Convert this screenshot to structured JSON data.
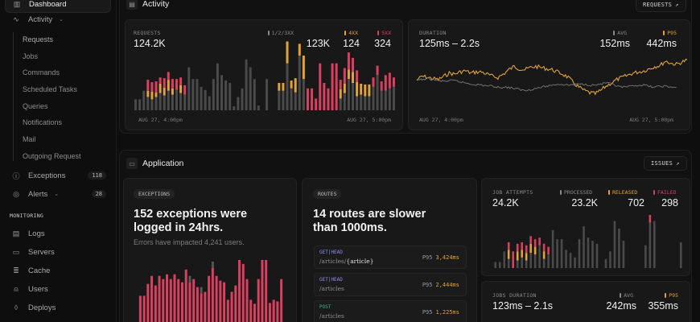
{
  "sidebar": {
    "items": [
      {
        "label": "Dashboard",
        "icon": "dashboard-icon",
        "glyph": "▥"
      },
      {
        "label": "Activity",
        "icon": "activity-icon",
        "glyph": "∿",
        "expandable": true
      }
    ],
    "activity_children": [
      "Requests",
      "Jobs",
      "Commands",
      "Scheduled Tasks",
      "Queries",
      "Notifications",
      "Mail",
      "Outgoing Request"
    ],
    "exceptions": {
      "label": "Exceptions",
      "badge": "118",
      "glyph": "ⓘ"
    },
    "alerts": {
      "label": "Alerts",
      "badge": "28",
      "glyph": "◎"
    },
    "monitoring_label": "MONITORING",
    "monitoring": [
      {
        "label": "Logs",
        "glyph": "▤"
      },
      {
        "label": "Servers",
        "glyph": "▭"
      },
      {
        "label": "Cache",
        "glyph": "≣"
      },
      {
        "label": "Users",
        "glyph": "⍝"
      },
      {
        "label": "Deploys",
        "glyph": "◊"
      }
    ]
  },
  "activity": {
    "title": "Activity",
    "link_label": "REQUESTS",
    "link_arrow": "↗",
    "requests": {
      "label": "REQUESTS",
      "total": "124.2K",
      "legend": [
        {
          "name": "1/2/3XX",
          "value": "123K",
          "color": "#6b6b6b"
        },
        {
          "name": "4XX",
          "value": "124",
          "color": "#e0a33a"
        },
        {
          "name": "5XX",
          "value": "324",
          "color": "#d9405f"
        }
      ],
      "x_start": "AUG 27, 4:00pm",
      "x_end": "AUG 27, 5:00pm"
    },
    "duration": {
      "label": "DURATION",
      "range": "125ms – 2.2s",
      "legend": [
        {
          "name": "AVG",
          "value": "152ms",
          "color": "#8a8a8a"
        },
        {
          "name": "P95",
          "value": "442ms",
          "color": "#e0a33a"
        }
      ],
      "x_start": "AUG 27, 4:00pm",
      "x_end": "AUG 27, 5:00pm"
    }
  },
  "application": {
    "title": "Application",
    "link_label": "ISSUES",
    "link_arrow": "↗",
    "exceptions": {
      "pill": "EXCEPTIONS",
      "headline_1": "152 exceptions were",
      "headline_2": "logged in 24hrs.",
      "subtitle": "Errors have impacted 4,241 users."
    },
    "routes": {
      "pill": "ROUTES",
      "headline_1": "14 routes are slower",
      "headline_2": "than 1000ms.",
      "items": [
        {
          "method": "GET|HEAD",
          "method_color": "#8b8cf0",
          "path_prefix": "/articles/",
          "path_param": "{article}",
          "p95_label": "P95",
          "p95": "3,424ms"
        },
        {
          "method": "GET|HEAD",
          "method_color": "#8b8cf0",
          "path_prefix": "/articles",
          "path_param": "",
          "p95_label": "P95",
          "p95": "2,444ms"
        },
        {
          "method": "POST",
          "method_color": "#3fb47a",
          "path_prefix": "/articles",
          "path_param": "",
          "p95_label": "P95",
          "p95": "1,225ms"
        }
      ]
    },
    "jobs": {
      "label": "JOB ATTEMPTS",
      "total": "24.2K",
      "legend": [
        {
          "name": "PROCESSED",
          "value": "23.2K",
          "color": "#8a8a8a"
        },
        {
          "name": "RELEASED",
          "value": "702",
          "color": "#e0a33a"
        },
        {
          "name": "FAILED",
          "value": "298",
          "color": "#d9405f"
        }
      ]
    },
    "jobs_duration": {
      "label": "JOBS DURATION",
      "range": "123ms – 2.1s",
      "legend": [
        {
          "name": "AVG",
          "value": "242ms",
          "color": "#8a8a8a"
        },
        {
          "name": "P95",
          "value": "355ms",
          "color": "#e0a33a"
        }
      ]
    }
  },
  "chart_data": [
    {
      "type": "bar",
      "title": "Requests",
      "stacked": true,
      "series": [
        {
          "name": "1/2/3XX",
          "values": [
            14,
            14,
            25,
            17,
            14,
            17,
            22,
            19,
            25,
            20,
            26,
            22,
            20,
            55,
            40,
            40,
            30,
            26,
            18,
            40,
            60,
            45,
            38,
            35,
            5,
            17,
            28,
            65,
            55,
            40,
            6,
            0,
            40,
            0,
            0,
            25,
            25,
            60,
            28,
            23,
            70,
            40,
            0,
            0,
            0,
            0,
            0,
            0,
            0,
            0,
            15,
            22,
            40,
            35,
            18,
            20,
            18,
            18,
            30,
            45,
            25,
            25,
            28,
            30
          ]
        },
        {
          "name": "4XX",
          "values": [
            0,
            0,
            0,
            8,
            10,
            6,
            12,
            10,
            14,
            8,
            0,
            10,
            0,
            0,
            0,
            0,
            0,
            0,
            0,
            0,
            0,
            0,
            0,
            0,
            0,
            0,
            0,
            0,
            0,
            0,
            0,
            0,
            0,
            0,
            0,
            10,
            10,
            28,
            10,
            18,
            15,
            30,
            0,
            0,
            0,
            0,
            0,
            0,
            0,
            0,
            12,
            12,
            12,
            14,
            18,
            14,
            15,
            15,
            0,
            0,
            0,
            0,
            0,
            0
          ]
        },
        {
          "name": "5XX",
          "values": [
            0,
            0,
            0,
            14,
            12,
            14,
            8,
            12,
            10,
            12,
            14,
            10,
            12,
            0,
            0,
            0,
            0,
            0,
            0,
            0,
            0,
            0,
            0,
            0,
            0,
            0,
            0,
            0,
            0,
            0,
            0,
            0,
            0,
            0,
            0,
            0,
            0,
            0,
            0,
            0,
            0,
            0,
            28,
            28,
            15,
            60,
            35,
            28,
            60,
            60,
            12,
            20,
            22,
            18,
            15,
            0,
            0,
            0,
            12,
            12,
            12,
            20,
            20,
            12
          ]
        }
      ],
      "x_range": [
        "AUG 27, 4:00pm",
        "AUG 27, 5:00pm"
      ]
    },
    {
      "type": "line",
      "title": "Duration",
      "series": [
        {
          "name": "P95",
          "values": [
            0.55,
            0.62,
            0.6,
            0.58,
            0.56,
            0.62,
            0.68,
            0.66,
            0.7,
            0.72,
            0.68,
            0.7,
            0.7,
            0.66,
            0.62,
            0.6,
            0.66,
            0.74,
            0.8,
            0.76,
            0.74,
            0.78,
            0.8,
            0.78,
            0.76,
            0.74,
            0.7,
            0.66,
            0.6,
            0.5,
            0.42,
            0.36,
            0.32,
            0.3,
            0.36,
            0.44,
            0.5,
            0.56,
            0.6,
            0.64,
            0.68,
            0.7,
            0.72,
            0.76,
            0.8,
            0.82,
            0.9,
            0.86,
            0.84,
            0.88,
            0.92
          ]
        },
        {
          "name": "AVG",
          "values": [
            0.55,
            0.56,
            0.58,
            0.56,
            0.54,
            0.53,
            0.54,
            0.54,
            0.52,
            0.5,
            0.48,
            0.47,
            0.46,
            0.45,
            0.44,
            0.42,
            0.42,
            0.42,
            0.4,
            0.38,
            0.36,
            0.38,
            0.4,
            0.42,
            0.44,
            0.46,
            0.48,
            0.47,
            0.46,
            0.47,
            0.48,
            0.48,
            0.46,
            0.46,
            0.48,
            0.5,
            0.48,
            0.44,
            0.42,
            0.43,
            0.44,
            0.46,
            0.46,
            0.44,
            0.42,
            0.44,
            0.44,
            0.42,
            0.42
          ]
        }
      ],
      "x_range": [
        "AUG 27, 4:00pm",
        "AUG 27, 5:00pm"
      ]
    },
    {
      "type": "bar",
      "title": "Exceptions",
      "series": [
        {
          "name": "exceptions",
          "values": [
            45,
            45,
            60,
            70,
            58,
            70,
            66,
            72,
            66,
            72,
            66,
            62,
            78,
            62,
            66,
            56,
            48,
            50,
            70,
            80,
            70,
            64,
            62,
            40,
            50,
            58,
            90,
            85,
            66,
            40,
            35,
            66,
            90,
            90,
            36,
            40,
            38,
            66
          ]
        },
        {
          "name": "other",
          "values": [
            0,
            0,
            0,
            0,
            0,
            0,
            0,
            0,
            0,
            0,
            0,
            0,
            0,
            8,
            0,
            0,
            8,
            0,
            0,
            8,
            0,
            0,
            0,
            0,
            0,
            0,
            0,
            0,
            0,
            0,
            0,
            0,
            0,
            0,
            0,
            0,
            0,
            0
          ]
        }
      ]
    },
    {
      "type": "bar",
      "title": "Job Attempts",
      "stacked": true,
      "series": [
        {
          "name": "PROCESSED",
          "values": [
            8,
            8,
            22,
            12,
            0,
            10,
            14,
            10,
            20,
            18,
            30,
            12,
            18,
            50,
            38,
            38,
            24,
            20,
            14,
            38,
            55,
            40,
            36,
            32,
            0,
            12,
            22,
            62,
            52,
            36,
            0,
            0,
            0,
            0,
            30,
            60,
            62,
            0,
            0,
            0,
            0,
            0,
            34
          ]
        },
        {
          "name": "RELEASED",
          "values": [
            0,
            0,
            0,
            12,
            0,
            12,
            10,
            10,
            12,
            10,
            0,
            10,
            0,
            0,
            0,
            0,
            0,
            0,
            0,
            0,
            0,
            0,
            0,
            0,
            0,
            0,
            0,
            0,
            0,
            0,
            0,
            0,
            0,
            0,
            0,
            0,
            0,
            0,
            0,
            0,
            0,
            0,
            0
          ]
        },
        {
          "name": "FAILED",
          "values": [
            0,
            0,
            0,
            10,
            22,
            10,
            10,
            10,
            10,
            10,
            10,
            10,
            10,
            0,
            0,
            0,
            0,
            0,
            0,
            0,
            0,
            0,
            0,
            0,
            0,
            0,
            0,
            0,
            0,
            0,
            0,
            0,
            0,
            0,
            0,
            10,
            0,
            0,
            0,
            0,
            0,
            0,
            0
          ]
        }
      ]
    }
  ]
}
